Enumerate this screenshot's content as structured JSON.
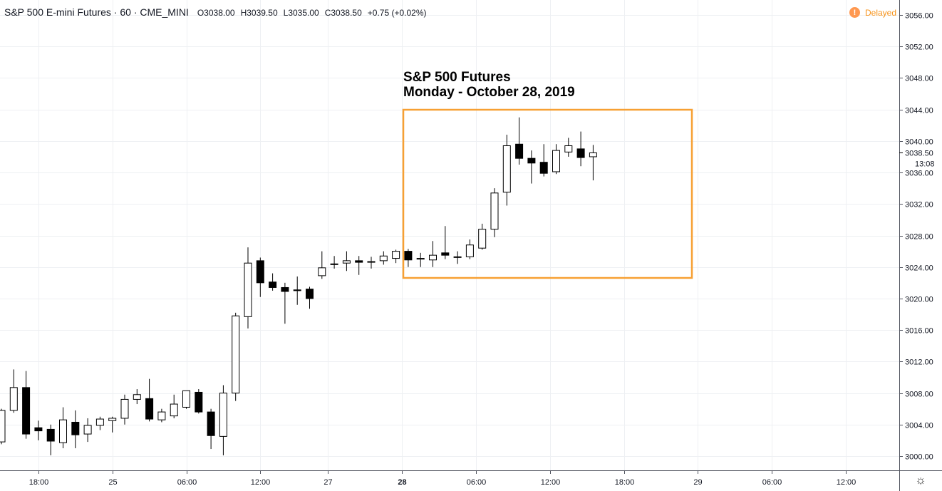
{
  "header": {
    "title": "S&P 500 E-mini Futures · 60 · CME_MINI",
    "o_label": "O",
    "o_value": "3038.00",
    "h_label": "H",
    "h_value": "3039.50",
    "l_label": "L",
    "l_value": "3035.00",
    "c_label": "C",
    "c_value": "3038.50",
    "change": "+0.75 (+0.02%)"
  },
  "status": {
    "delayed_label": "Delayed",
    "delayed_icon": "exclamation-icon"
  },
  "annotation": {
    "line1": "S&P 500 Futures",
    "line2": "Monday - October 28, 2019",
    "box_color": "#f7a033"
  },
  "price_axis": {
    "current_price_label": "3038.50",
    "countdown_label": "13:08"
  },
  "chart_data": {
    "type": "candlestick",
    "ylim": [
      2998.5,
      3057.5
    ],
    "y_ticks": [
      3000,
      3004,
      3008,
      3012,
      3016,
      3020,
      3024,
      3028,
      3032,
      3036,
      3040,
      3044,
      3048,
      3052,
      3056
    ],
    "y_tick_labels": [
      "3000.00",
      "3004.00",
      "3008.00",
      "3012.00",
      "3016.00",
      "3020.00",
      "3024.00",
      "3028.00",
      "3032.00",
      "3036.00",
      "3040.00",
      "3044.00",
      "3048.00",
      "3052.00",
      "3056.00"
    ],
    "x_ticks": [
      {
        "label": "18:00",
        "bar": 3,
        "bold": false
      },
      {
        "label": "25",
        "bar": 9,
        "bold": false
      },
      {
        "label": "06:00",
        "bar": 15,
        "bold": false
      },
      {
        "label": "12:00",
        "bar": 21,
        "bold": false
      },
      {
        "label": "27",
        "bar": 26.5,
        "bold": false
      },
      {
        "label": "28",
        "bar": 32.5,
        "bold": true
      },
      {
        "label": "06:00",
        "bar": 38.5,
        "bold": false
      },
      {
        "label": "12:00",
        "bar": 44.5,
        "bold": false
      },
      {
        "label": "18:00",
        "bar": 50.5,
        "bold": false
      },
      {
        "label": "29",
        "bar": 56.5,
        "bold": false
      },
      {
        "label": "06:00",
        "bar": 62.5,
        "bold": false
      },
      {
        "label": "12:00",
        "bar": 68.5,
        "bold": false
      }
    ],
    "candles": [
      {
        "o": 3001.8,
        "h": 3006.0,
        "l": 3001.5,
        "c": 3005.8
      },
      {
        "o": 3005.8,
        "h": 3011.0,
        "l": 3005.5,
        "c": 3008.7
      },
      {
        "o": 3008.7,
        "h": 3010.8,
        "l": 3002.2,
        "c": 3002.8
      },
      {
        "o": 3003.6,
        "h": 3004.5,
        "l": 3002.0,
        "c": 3003.2
      },
      {
        "o": 3003.4,
        "h": 3004.0,
        "l": 3000.1,
        "c": 3001.9
      },
      {
        "o": 3001.7,
        "h": 3006.2,
        "l": 3001.0,
        "c": 3004.6
      },
      {
        "o": 3004.3,
        "h": 3005.8,
        "l": 3001.0,
        "c": 3002.7
      },
      {
        "o": 3002.8,
        "h": 3004.8,
        "l": 3001.8,
        "c": 3003.9
      },
      {
        "o": 3003.9,
        "h": 3005.0,
        "l": 3003.3,
        "c": 3004.7
      },
      {
        "o": 3004.5,
        "h": 3005.0,
        "l": 3003.0,
        "c": 3004.8
      },
      {
        "o": 3004.8,
        "h": 3007.8,
        "l": 3004.0,
        "c": 3007.2
      },
      {
        "o": 3007.2,
        "h": 3008.5,
        "l": 3006.6,
        "c": 3007.8
      },
      {
        "o": 3007.3,
        "h": 3009.8,
        "l": 3004.4,
        "c": 3004.7
      },
      {
        "o": 3004.6,
        "h": 3006.0,
        "l": 3004.3,
        "c": 3005.6
      },
      {
        "o": 3005.1,
        "h": 3007.8,
        "l": 3004.8,
        "c": 3006.6
      },
      {
        "o": 3006.2,
        "h": 3008.3,
        "l": 3006.0,
        "c": 3008.3
      },
      {
        "o": 3008.1,
        "h": 3008.5,
        "l": 3005.4,
        "c": 3005.6
      },
      {
        "o": 3005.6,
        "h": 3006.0,
        "l": 3000.9,
        "c": 3002.6
      },
      {
        "o": 3002.5,
        "h": 3009.0,
        "l": 3000.1,
        "c": 3008.0
      },
      {
        "o": 3008.0,
        "h": 3018.2,
        "l": 3007.0,
        "c": 3017.8
      },
      {
        "o": 3017.7,
        "h": 3026.5,
        "l": 3016.2,
        "c": 3024.5
      },
      {
        "o": 3024.8,
        "h": 3025.2,
        "l": 3020.2,
        "c": 3022.0
      },
      {
        "o": 3022.1,
        "h": 3023.2,
        "l": 3021.0,
        "c": 3021.4
      },
      {
        "o": 3021.4,
        "h": 3022.0,
        "l": 3016.8,
        "c": 3020.9
      },
      {
        "o": 3021.1,
        "h": 3022.8,
        "l": 3019.2,
        "c": 3021.0
      },
      {
        "o": 3021.2,
        "h": 3021.5,
        "l": 3018.7,
        "c": 3020.0
      },
      {
        "o": 3022.9,
        "h": 3026.0,
        "l": 3022.5,
        "c": 3023.9
      },
      {
        "o": 3024.4,
        "h": 3025.4,
        "l": 3023.8,
        "c": 3024.4
      },
      {
        "o": 3024.5,
        "h": 3026.0,
        "l": 3023.5,
        "c": 3024.8
      },
      {
        "o": 3024.8,
        "h": 3025.4,
        "l": 3023.0,
        "c": 3024.6
      },
      {
        "o": 3024.6,
        "h": 3025.3,
        "l": 3023.8,
        "c": 3024.7
      },
      {
        "o": 3024.8,
        "h": 3026.0,
        "l": 3024.3,
        "c": 3025.4
      },
      {
        "o": 3025.1,
        "h": 3026.2,
        "l": 3024.5,
        "c": 3026.0
      },
      {
        "o": 3026.0,
        "h": 3026.3,
        "l": 3024.0,
        "c": 3024.9
      },
      {
        "o": 3025.0,
        "h": 3025.8,
        "l": 3024.0,
        "c": 3025.1
      },
      {
        "o": 3024.9,
        "h": 3027.3,
        "l": 3024.0,
        "c": 3025.5
      },
      {
        "o": 3025.8,
        "h": 3029.2,
        "l": 3025.0,
        "c": 3025.5
      },
      {
        "o": 3025.3,
        "h": 3026.0,
        "l": 3024.4,
        "c": 3025.3
      },
      {
        "o": 3025.3,
        "h": 3027.5,
        "l": 3025.0,
        "c": 3026.8
      },
      {
        "o": 3026.4,
        "h": 3029.5,
        "l": 3026.2,
        "c": 3028.8
      },
      {
        "o": 3028.8,
        "h": 3034.0,
        "l": 3027.8,
        "c": 3033.4
      },
      {
        "o": 3033.5,
        "h": 3040.8,
        "l": 3031.8,
        "c": 3039.4
      },
      {
        "o": 3039.6,
        "h": 3043.0,
        "l": 3037.0,
        "c": 3037.8
      },
      {
        "o": 3037.8,
        "h": 3038.8,
        "l": 3034.6,
        "c": 3037.2
      },
      {
        "o": 3037.3,
        "h": 3039.6,
        "l": 3035.5,
        "c": 3035.9
      },
      {
        "o": 3036.1,
        "h": 3039.6,
        "l": 3035.8,
        "c": 3038.8
      },
      {
        "o": 3038.6,
        "h": 3040.4,
        "l": 3038.0,
        "c": 3039.4
      },
      {
        "o": 3039.0,
        "h": 3041.2,
        "l": 3036.8,
        "c": 3037.9
      },
      {
        "o": 3038.0,
        "h": 3039.5,
        "l": 3035.0,
        "c": 3038.5
      }
    ]
  }
}
